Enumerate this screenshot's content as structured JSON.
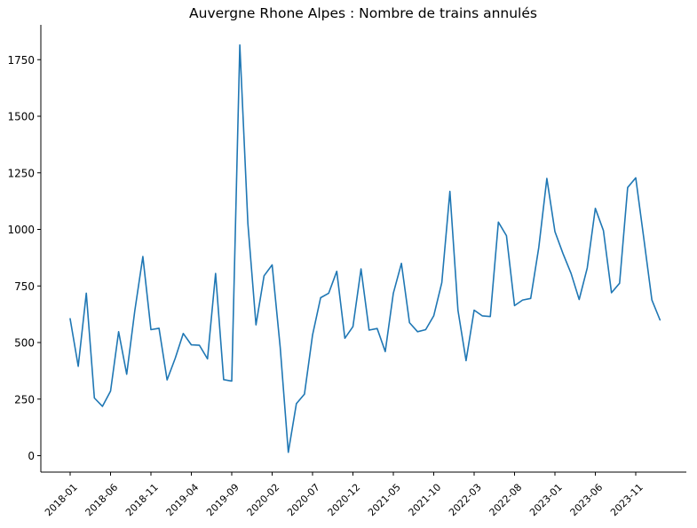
{
  "chart_data": {
    "type": "line",
    "title": "Auvergne Rhone Alpes : Nombre de trains annulés",
    "xlabel": "",
    "ylabel": "",
    "ylim": [
      -70,
      1890
    ],
    "yticks": [
      0,
      250,
      500,
      750,
      1000,
      1250,
      1500,
      1750
    ],
    "ytick_labels": [
      "0",
      "250",
      "500",
      "750",
      "1000",
      "1250",
      "1500",
      "1750"
    ],
    "xtick_labels": [
      "2018-01",
      "2018-06",
      "2018-11",
      "2019-04",
      "2019-09",
      "2020-02",
      "2020-07",
      "2020-12",
      "2021-05",
      "2021-10",
      "2022-03",
      "2022-08",
      "2023-01",
      "2023-06",
      "2023-11"
    ],
    "x_start": "2018-01",
    "x_end": "2024-02",
    "grid": false,
    "line_color": "#1f77b4",
    "series": [
      {
        "x": [
          "2018-01",
          "2018-02",
          "2018-03",
          "2018-04",
          "2018-05",
          "2018-06",
          "2018-07",
          "2018-08",
          "2018-09",
          "2018-10",
          "2018-11",
          "2018-12",
          "2019-01",
          "2019-02",
          "2019-03",
          "2019-04",
          "2019-05",
          "2019-06",
          "2019-07",
          "2019-08",
          "2019-09",
          "2019-10",
          "2019-11",
          "2019-12",
          "2020-01",
          "2020-02",
          "2020-03",
          "2020-04",
          "2020-05",
          "2020-06",
          "2020-07",
          "2020-08",
          "2020-09",
          "2020-10",
          "2020-11",
          "2020-12",
          "2021-01",
          "2021-02",
          "2021-03",
          "2021-04",
          "2021-05",
          "2021-06",
          "2021-07",
          "2021-08",
          "2021-09",
          "2021-10",
          "2021-11",
          "2021-12",
          "2022-01",
          "2022-02",
          "2022-03",
          "2022-04",
          "2022-05",
          "2022-06",
          "2022-07",
          "2022-08",
          "2022-09",
          "2022-10",
          "2022-11",
          "2022-12",
          "2023-01",
          "2023-02",
          "2023-03",
          "2023-04",
          "2023-05",
          "2023-06",
          "2023-07",
          "2023-08",
          "2023-09",
          "2023-10",
          "2023-11",
          "2023-12",
          "2024-01",
          "2024-02"
        ],
        "values": [
          605,
          395,
          718,
          255,
          218,
          285,
          548,
          360,
          640,
          880,
          557,
          563,
          335,
          430,
          540,
          490,
          488,
          428,
          805,
          336,
          330,
          1815,
          1025,
          578,
          795,
          843,
          478,
          15,
          230,
          272,
          533,
          698,
          718,
          815,
          519,
          570,
          825,
          555,
          562,
          460,
          718,
          850,
          588,
          548,
          557,
          618,
          765,
          1168,
          642,
          420,
          643,
          618,
          615,
          1032,
          972,
          663,
          688,
          695,
          920,
          1225,
          990,
          893,
          805,
          690,
          830,
          1093,
          995,
          720,
          762,
          1185,
          1228,
          960,
          688,
          600
        ]
      }
    ]
  }
}
